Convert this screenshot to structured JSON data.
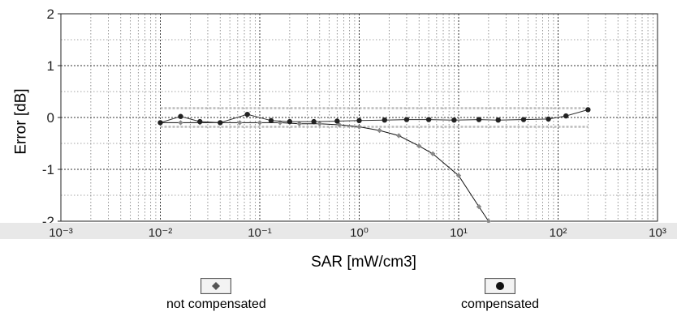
{
  "chart_data": {
    "type": "line",
    "xscale": "log",
    "xlabel": "SAR [mW/cm3]",
    "ylabel": "Error [dB]",
    "xlim": [
      0.001,
      1000
    ],
    "ylim": [
      -2,
      2
    ],
    "grid": true,
    "x_ticks": [
      "10⁻³",
      "10⁻²",
      "10⁻¹",
      "10⁰",
      "10¹",
      "10²",
      "10³"
    ],
    "y_ticks": [
      "2",
      "1",
      "0",
      "-1",
      "-2"
    ],
    "legend_position": "bottom",
    "series": [
      {
        "name": "not compensated",
        "marker": "diamond",
        "x": [
          0.01,
          0.016,
          0.025,
          0.04,
          0.063,
          0.1,
          0.16,
          0.25,
          0.4,
          0.63,
          1.0,
          1.6,
          2.5,
          4.0,
          5.5,
          10,
          16,
          20
        ],
        "y": [
          -0.1,
          -0.1,
          -0.1,
          -0.1,
          -0.1,
          -0.1,
          -0.1,
          -0.12,
          -0.12,
          -0.14,
          -0.18,
          -0.25,
          -0.35,
          -0.55,
          -0.7,
          -1.12,
          -1.72,
          -2.0
        ]
      },
      {
        "name": "compensated",
        "marker": "circle",
        "x": [
          0.01,
          0.016,
          0.025,
          0.04,
          0.075,
          0.13,
          0.2,
          0.35,
          0.6,
          1.0,
          1.8,
          3.0,
          5.0,
          9.0,
          16,
          25,
          45,
          80,
          120,
          200
        ],
        "y": [
          -0.1,
          0.02,
          -0.08,
          -0.1,
          0.06,
          -0.06,
          -0.08,
          -0.08,
          -0.07,
          -0.06,
          -0.05,
          -0.04,
          -0.04,
          -0.05,
          -0.04,
          -0.05,
          -0.04,
          -0.03,
          0.03,
          0.15
        ]
      }
    ]
  },
  "legend": {
    "not_compensated": "not compensated",
    "compensated": "compensated"
  }
}
